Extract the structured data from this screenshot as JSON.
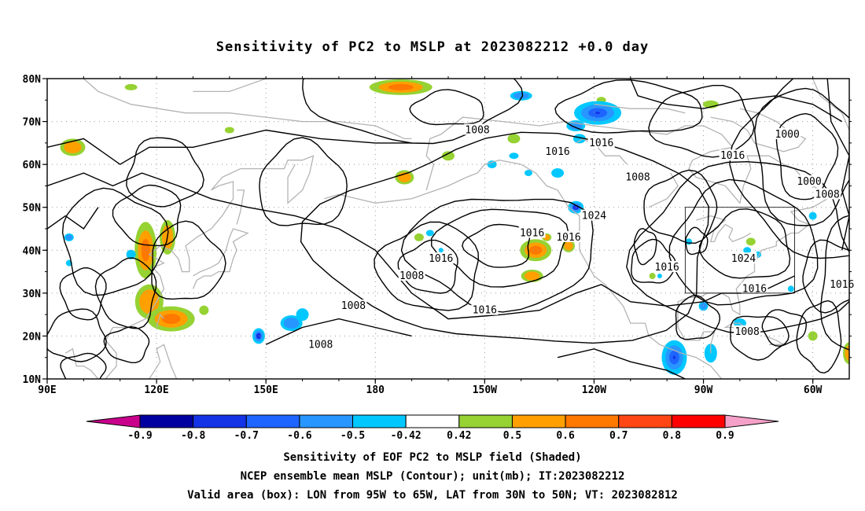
{
  "title": "Sensitivity of PC2 to MSLP at 2023082212 +0.0 day",
  "map": {
    "lat_labels": [
      "80N",
      "70N",
      "60N",
      "50N",
      "40N",
      "30N",
      "20N",
      "10N"
    ],
    "lon_labels": [
      "90E",
      "120E",
      "150E",
      "180",
      "150W",
      "120W",
      "90W",
      "60W"
    ],
    "valid_box": {
      "lon_from": "95W",
      "lon_to": "65W",
      "lat_from": "30N",
      "lat_to": "50N"
    },
    "contour_labels": [
      {
        "text": "1008",
        "lon": -152,
        "lat": 68
      },
      {
        "text": "1016",
        "lon": -118,
        "lat": 65
      },
      {
        "text": "1016",
        "lon": -130,
        "lat": 63
      },
      {
        "text": "1016",
        "lon": -82,
        "lat": 62
      },
      {
        "text": "1000",
        "lon": -67,
        "lat": 67
      },
      {
        "text": "1000",
        "lon": -61,
        "lat": 56
      },
      {
        "text": "1008",
        "lon": -56,
        "lat": 53
      },
      {
        "text": "1008",
        "lon": -108,
        "lat": 57
      },
      {
        "text": "1016",
        "lon": -137,
        "lat": 44
      },
      {
        "text": "1024",
        "lon": -120,
        "lat": 48
      },
      {
        "text": "1016",
        "lon": -127,
        "lat": 43
      },
      {
        "text": "1016",
        "lon": -100,
        "lat": 36
      },
      {
        "text": "1024",
        "lon": -79,
        "lat": 38
      },
      {
        "text": "1016",
        "lon": -76,
        "lat": 31
      },
      {
        "text": "1008",
        "lon": -78,
        "lat": 21
      },
      {
        "text": "1016",
        "lon": -52,
        "lat": 32
      },
      {
        "text": "1016",
        "lon": -162,
        "lat": 38
      },
      {
        "text": "1016",
        "lon": -150,
        "lat": 26
      },
      {
        "text": "1008",
        "lon": -170,
        "lat": 34
      },
      {
        "text": "1008",
        "lon": -186,
        "lat": 27
      },
      {
        "text": "1008",
        "lon": -195,
        "lat": 18
      }
    ],
    "colors": {
      "contour": "#000000",
      "coastline": "#b4b4b4",
      "grid": "#9a9a9a"
    }
  },
  "colorbar": {
    "labels": [
      "-0.9",
      "-0.8",
      "-0.7",
      "-0.6",
      "-0.5",
      "-0.42",
      "0.42",
      "0.5",
      "0.6",
      "0.7",
      "0.8",
      "0.9"
    ],
    "colors": [
      "#0000a0",
      "#1432e6",
      "#1e64ff",
      "#2896ff",
      "#00c8ff",
      "#ffffff",
      "#96d232",
      "#ffa000",
      "#ff7800",
      "#ff4614",
      "#ff0000"
    ],
    "end_left": "#c8008c",
    "end_right": "#f5a0c8"
  },
  "captions": [
    "Sensitivity of EOF PC2 to MSLP field (Shaded)",
    "NCEP ensemble mean MSLP (Contour); unit(mb); IT:2023082212",
    "Valid area (box): LON from 95W to 65W, LAT from 30N to 50N; VT: 2023082812"
  ]
}
